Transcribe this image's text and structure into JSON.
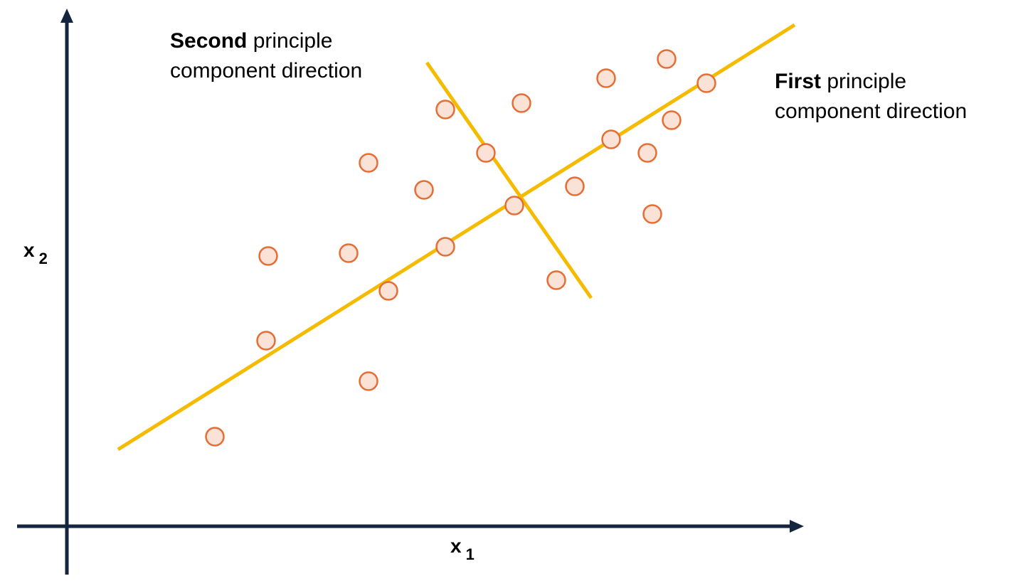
{
  "labels": {
    "second_bold": "Second",
    "second_rest_line1": "principle",
    "second_line2": "component direction",
    "first_bold": "First",
    "first_rest_line1": "principle",
    "first_line2": "component direction",
    "x_axis_var": "x",
    "x_axis_sub": "1",
    "y_axis_var": "x",
    "y_axis_sub": "2"
  },
  "colors": {
    "axis": "#13263d",
    "component_line": "#f5bb00",
    "point_fill": "#fbe2d6",
    "point_stroke": "#e66d34"
  }
}
